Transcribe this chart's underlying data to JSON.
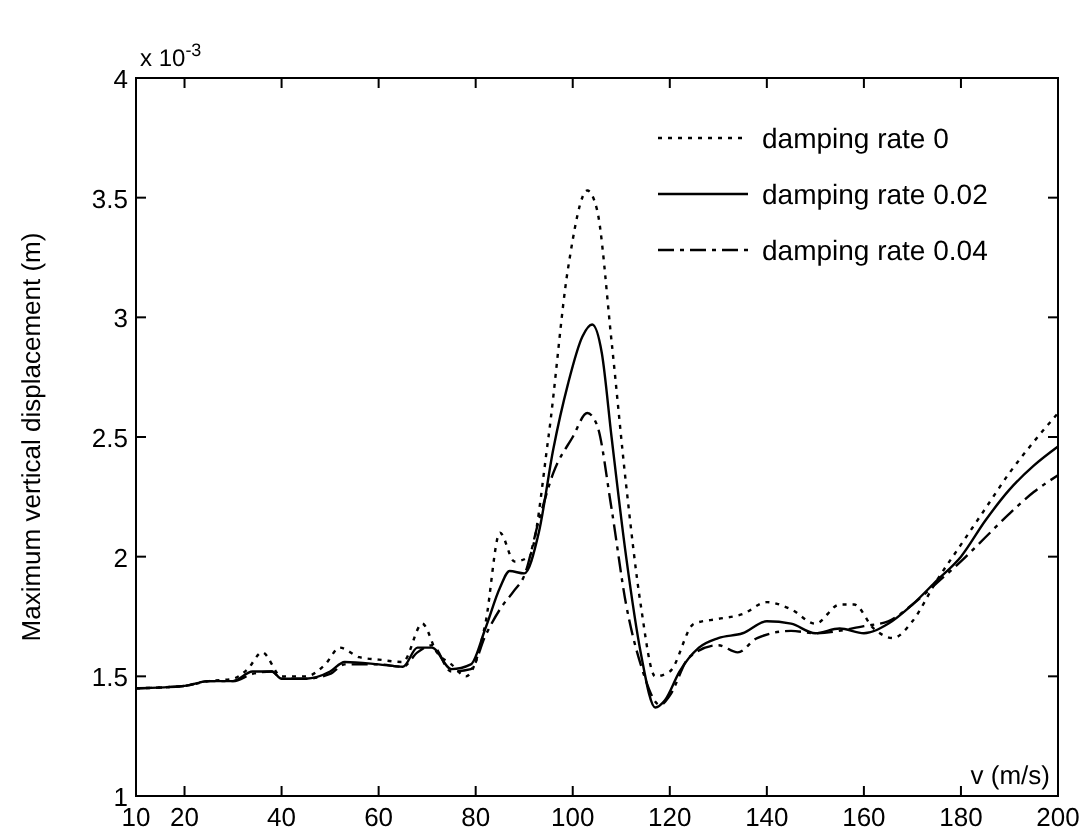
{
  "chart_data": {
    "type": "line",
    "ylabel": "Maximum vertical displacement (m)",
    "xlabel": "v (m/s)",
    "annotations": [
      "x 10$^{-3}$"
    ],
    "xlim": [
      10,
      200
    ],
    "ylim": [
      1,
      4
    ],
    "xticks": [
      10,
      20,
      40,
      60,
      80,
      100,
      120,
      140,
      160,
      180,
      200
    ],
    "yticks": [
      1,
      1.5,
      2,
      2.5,
      3,
      3.5,
      4
    ],
    "legend": "top right",
    "grid": false,
    "marker": "none",
    "series": [
      {
        "name": "damping rate 0",
        "color": "#000000",
        "line_style": "dotted",
        "x": [
          10,
          20,
          25,
          30,
          33,
          36,
          40,
          45,
          49,
          52,
          56,
          60,
          65,
          69,
          72,
          75,
          78,
          82,
          85,
          88,
          91,
          95,
          99,
          103,
          105,
          108,
          111,
          114,
          117,
          120,
          125,
          130,
          135,
          140,
          145,
          150,
          155,
          158,
          162,
          166,
          170,
          175,
          180,
          185,
          190,
          195,
          200
        ],
        "values": [
          1.45,
          1.46,
          1.48,
          1.49,
          1.53,
          1.6,
          1.5,
          1.5,
          1.55,
          1.62,
          1.58,
          1.57,
          1.56,
          1.72,
          1.6,
          1.55,
          1.5,
          1.72,
          2.1,
          1.98,
          2.0,
          2.5,
          3.2,
          3.53,
          3.45,
          2.9,
          2.3,
          1.8,
          1.5,
          1.52,
          1.72,
          1.74,
          1.76,
          1.81,
          1.78,
          1.72,
          1.8,
          1.8,
          1.7,
          1.66,
          1.73,
          1.9,
          2.05,
          2.2,
          2.35,
          2.48,
          2.6
        ]
      },
      {
        "name": "damping rate 0.02",
        "color": "#000000",
        "line_style": "solid",
        "x": [
          10,
          20,
          25,
          30,
          34,
          38,
          40,
          45,
          50,
          53,
          60,
          65,
          68,
          71,
          75,
          79,
          82,
          85,
          87,
          90,
          93,
          96,
          99,
          102,
          104,
          106,
          108,
          111,
          114,
          117,
          119,
          122,
          126,
          130,
          135,
          140,
          145,
          150,
          155,
          160,
          165,
          170,
          175,
          180,
          185,
          190,
          195,
          200
        ],
        "values": [
          1.45,
          1.46,
          1.48,
          1.48,
          1.52,
          1.52,
          1.49,
          1.49,
          1.52,
          1.56,
          1.55,
          1.54,
          1.62,
          1.62,
          1.53,
          1.55,
          1.7,
          1.87,
          1.94,
          1.93,
          2.1,
          2.45,
          2.72,
          2.92,
          2.97,
          2.85,
          2.5,
          2.0,
          1.6,
          1.37,
          1.4,
          1.52,
          1.62,
          1.66,
          1.68,
          1.73,
          1.72,
          1.68,
          1.7,
          1.68,
          1.72,
          1.8,
          1.9,
          2.0,
          2.15,
          2.28,
          2.38,
          2.46
        ]
      },
      {
        "name": "damping rate 0.04",
        "color": "#000000",
        "line_style": "dashdot",
        "x": [
          10,
          20,
          25,
          30,
          34,
          38,
          40,
          45,
          50,
          53,
          60,
          65,
          68,
          71,
          75,
          79,
          82,
          85,
          88,
          90,
          93,
          96,
          100,
          103,
          105,
          108,
          111,
          114,
          118,
          120,
          124,
          130,
          134,
          138,
          145,
          150,
          160,
          165,
          170,
          175,
          180,
          185,
          190,
          195,
          200
        ],
        "values": [
          1.45,
          1.46,
          1.48,
          1.48,
          1.51,
          1.52,
          1.49,
          1.49,
          1.51,
          1.55,
          1.55,
          1.54,
          1.6,
          1.63,
          1.52,
          1.53,
          1.67,
          1.78,
          1.86,
          1.92,
          2.15,
          2.35,
          2.5,
          2.6,
          2.55,
          2.2,
          1.8,
          1.55,
          1.38,
          1.42,
          1.58,
          1.63,
          1.6,
          1.66,
          1.69,
          1.68,
          1.71,
          1.73,
          1.8,
          1.89,
          1.98,
          2.08,
          2.18,
          2.27,
          2.34
        ]
      }
    ]
  }
}
